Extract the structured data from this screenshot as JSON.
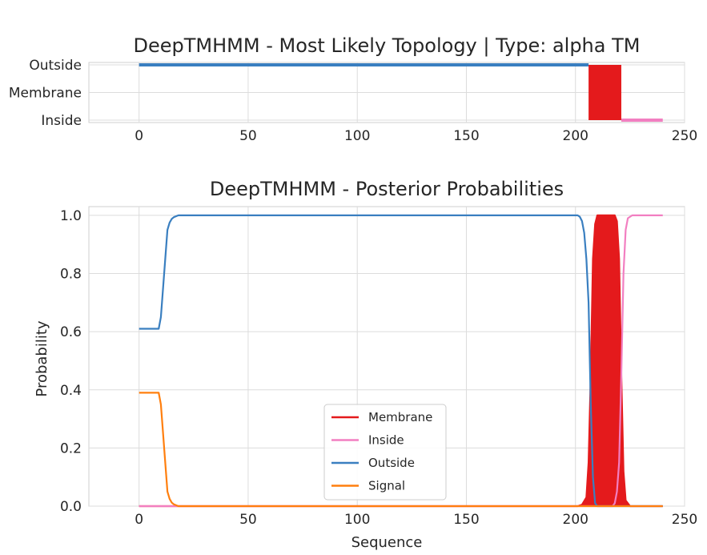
{
  "chart_data": [
    {
      "type": "line",
      "title": "DeepTMHMM - Most Likely Topology | Type: alpha TM",
      "xlabel": "",
      "ylabel": "",
      "xlim": [
        -23,
        250
      ],
      "xticks": [
        0,
        50,
        100,
        150,
        200,
        250
      ],
      "yticks": [
        "Outside",
        "Membrane",
        "Inside"
      ],
      "grid": true,
      "colors": {
        "Outside": "#3a7fc0",
        "Membrane": "#e41a1c",
        "Inside": "#f27fc1"
      },
      "segments": [
        {
          "label": "Outside",
          "start": 0,
          "end": 206
        },
        {
          "label": "Membrane",
          "start": 206,
          "end": 221
        },
        {
          "label": "Inside",
          "start": 221,
          "end": 240
        }
      ]
    },
    {
      "type": "line",
      "title": "DeepTMHMM - Posterior Probabilities",
      "xlabel": "Sequence",
      "ylabel": "Probability",
      "xlim": [
        -23,
        250
      ],
      "ylim": [
        0,
        1.03
      ],
      "xticks": [
        0,
        50,
        100,
        150,
        200,
        250
      ],
      "yticks": [
        "0.0",
        "0.2",
        "0.4",
        "0.6",
        "0.8",
        "1.0"
      ],
      "grid": true,
      "legend_position": "lower center",
      "series": [
        {
          "name": "Membrane",
          "color": "#e41a1c",
          "fill": true,
          "x": [
            0,
            201,
            203,
            205,
            206,
            207,
            208,
            209,
            210,
            212,
            214,
            216,
            218,
            219,
            220,
            221,
            222,
            223,
            225,
            240
          ],
          "y": [
            0,
            0,
            0.005,
            0.03,
            0.15,
            0.45,
            0.85,
            0.97,
            1.0,
            1.0,
            1.0,
            1.0,
            1.0,
            0.98,
            0.85,
            0.45,
            0.12,
            0.02,
            0,
            0
          ]
        },
        {
          "name": "Inside",
          "color": "#f27fc1",
          "x": [
            0,
            217,
            218,
            219,
            220,
            221,
            222,
            223,
            224,
            226,
            240
          ],
          "y": [
            0,
            0,
            0.01,
            0.05,
            0.15,
            0.45,
            0.8,
            0.95,
            0.99,
            1.0,
            1.0
          ]
        },
        {
          "name": "Outside",
          "color": "#3a7fc0",
          "x": [
            0,
            9,
            10,
            11,
            12,
            13,
            14,
            15,
            16,
            17,
            18,
            20,
            25,
            50,
            100,
            150,
            200,
            201,
            202,
            203,
            204,
            205,
            206,
            207,
            208,
            209,
            210,
            240
          ],
          "y": [
            0.61,
            0.61,
            0.65,
            0.75,
            0.85,
            0.95,
            0.975,
            0.988,
            0.994,
            0.997,
            1.0,
            1.0,
            1.0,
            1.0,
            1.0,
            1.0,
            1.0,
            1.0,
            0.995,
            0.98,
            0.94,
            0.85,
            0.7,
            0.35,
            0.1,
            0.01,
            0,
            0
          ]
        },
        {
          "name": "Signal",
          "color": "#ff7f0e",
          "x": [
            0,
            9,
            10,
            11,
            12,
            13,
            14,
            15,
            16,
            17,
            18,
            20,
            240
          ],
          "y": [
            0.39,
            0.39,
            0.35,
            0.25,
            0.15,
            0.05,
            0.025,
            0.012,
            0.006,
            0.003,
            0,
            0,
            0
          ]
        }
      ]
    }
  ]
}
